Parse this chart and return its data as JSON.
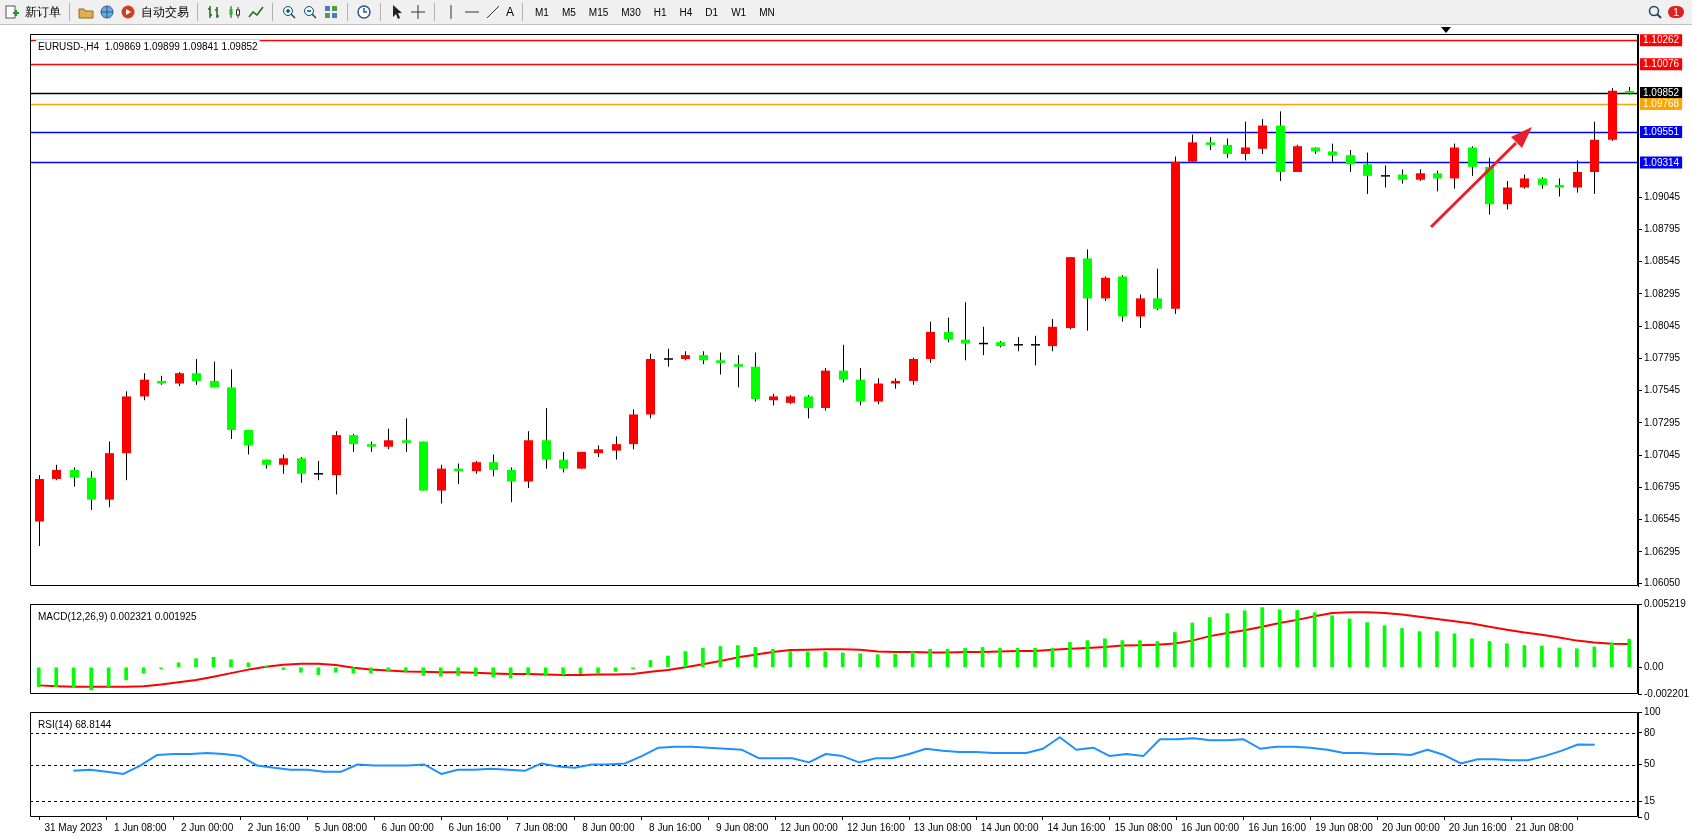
{
  "chart_data": [
    {
      "type": "other",
      "annotations": [
        "新订单",
        "自动交易",
        "A",
        "M1",
        "M5",
        "M15",
        "M30",
        "H1",
        "H4",
        "D1",
        "W1",
        "MN",
        "1"
      ]
    },
    {
      "type": "candlestick",
      "title": "EURUSD-,H4  1.09869 1.09899 1.09841 1.09852",
      "categories": [
        null,
        null,
        null,
        null,
        null,
        null,
        null,
        null,
        null,
        null,
        null,
        null,
        null,
        null,
        null,
        null,
        null,
        null,
        null,
        null,
        null,
        null,
        null,
        null,
        null,
        null,
        null,
        null,
        null,
        null,
        null,
        null,
        null,
        null,
        null,
        null,
        null,
        null,
        null,
        null,
        null,
        null,
        null,
        null,
        null,
        null,
        null,
        null,
        null,
        null,
        null,
        null,
        null,
        null,
        null,
        null,
        null,
        null,
        null,
        null,
        null,
        null,
        null,
        null,
        null,
        null,
        null,
        null,
        null,
        null,
        null,
        null,
        null,
        null,
        null,
        null,
        null,
        null,
        null,
        null,
        null,
        null,
        null,
        null,
        null,
        null,
        null,
        null,
        null,
        null,
        null,
        null
      ],
      "ohlc": [
        [
          1.0653,
          1.0689,
          1.0634,
          1.0686
        ],
        [
          1.0686,
          1.0697,
          1.0685,
          1.0693
        ],
        [
          1.0693,
          1.0695,
          1.068,
          1.0687
        ],
        [
          1.0687,
          1.0692,
          1.0662,
          1.067
        ],
        [
          1.067,
          1.0715,
          1.0664,
          1.0706
        ],
        [
          1.0706,
          1.0754,
          1.0685,
          1.075
        ],
        [
          1.075,
          1.0768,
          1.0747,
          1.0763
        ],
        [
          1.0762,
          1.0766,
          1.0759,
          1.076
        ],
        [
          1.076,
          1.0769,
          1.0758,
          1.0768
        ],
        [
          1.0768,
          1.0779,
          1.0759,
          1.0762
        ],
        [
          1.0762,
          1.0777,
          1.0757,
          1.0757
        ],
        [
          1.0757,
          1.0771,
          1.0717,
          1.0724
        ],
        [
          1.0724,
          1.0724,
          1.0705,
          1.0712
        ],
        [
          1.0701,
          1.0701,
          1.0694,
          1.0697
        ],
        [
          1.0697,
          1.0705,
          1.069,
          1.0702
        ],
        [
          1.0702,
          1.0703,
          1.0683,
          1.069
        ],
        [
          1.069,
          1.07,
          1.0685,
          1.069
        ],
        [
          1.0689,
          1.0723,
          1.0674,
          1.072
        ],
        [
          1.072,
          1.0721,
          1.0707,
          1.0713
        ],
        [
          1.0713,
          1.0715,
          1.0707,
          1.0711
        ],
        [
          1.0711,
          1.0725,
          1.0709,
          1.0716
        ],
        [
          1.0716,
          1.0733,
          1.0707,
          1.0714
        ],
        [
          1.0715,
          1.0715,
          1.0677,
          1.0677
        ],
        [
          1.0677,
          1.0697,
          1.0667,
          1.0694
        ],
        [
          1.0694,
          1.0698,
          1.0682,
          1.0692
        ],
        [
          1.0692,
          1.07,
          1.069,
          1.0699
        ],
        [
          1.0699,
          1.0705,
          1.0688,
          1.0693
        ],
        [
          1.0693,
          1.0695,
          1.0668,
          1.0684
        ],
        [
          1.0684,
          1.0723,
          1.0679,
          1.0716
        ],
        [
          1.0716,
          1.0741,
          1.0694,
          1.0701
        ],
        [
          1.0701,
          1.0707,
          1.0691,
          1.0694
        ],
        [
          1.0694,
          1.0707,
          1.0694,
          1.0707
        ],
        [
          1.0706,
          1.0712,
          1.0703,
          1.0709
        ],
        [
          1.0708,
          1.0719,
          1.0701,
          1.0713
        ],
        [
          1.0713,
          1.074,
          1.0709,
          1.0736
        ],
        [
          1.0736,
          1.0783,
          1.0733,
          1.0779
        ],
        [
          1.0779,
          1.0787,
          1.0773,
          1.0779
        ],
        [
          1.0779,
          1.0785,
          1.0778,
          1.0782
        ],
        [
          1.0782,
          1.0785,
          1.0775,
          1.0778
        ],
        [
          1.0778,
          1.0784,
          1.0767,
          1.0776
        ],
        [
          1.0775,
          1.0782,
          1.0757,
          1.0773
        ],
        [
          1.0773,
          1.0784,
          1.0746,
          1.0748
        ],
        [
          1.0747,
          1.0752,
          1.0743,
          1.075
        ],
        [
          1.0745,
          1.0751,
          1.0744,
          1.075
        ],
        [
          1.075,
          1.0751,
          1.0733,
          1.0741
        ],
        [
          1.0741,
          1.0772,
          1.0739,
          1.077
        ],
        [
          1.077,
          1.079,
          1.0761,
          1.0763
        ],
        [
          1.0763,
          1.0772,
          1.0743,
          1.0746
        ],
        [
          1.0746,
          1.0764,
          1.0744,
          1.076
        ],
        [
          1.076,
          1.0764,
          1.0756,
          1.0762
        ],
        [
          1.0762,
          1.078,
          1.0759,
          1.0779
        ],
        [
          1.0779,
          1.0808,
          1.0776,
          1.08
        ],
        [
          1.08,
          1.0811,
          1.0792,
          1.0794
        ],
        [
          1.0794,
          1.0823,
          1.0778,
          1.0791
        ],
        [
          1.0791,
          1.0804,
          1.0782,
          1.0791
        ],
        [
          1.0792,
          1.0793,
          1.0788,
          1.0789
        ],
        [
          1.079,
          1.0796,
          1.0785,
          1.079
        ],
        [
          1.079,
          1.0797,
          1.0774,
          1.079
        ],
        [
          1.0789,
          1.081,
          1.0785,
          1.0804
        ],
        [
          1.0803,
          1.0858,
          1.0802,
          1.0858
        ],
        [
          1.0857,
          1.0864,
          1.0801,
          1.0826
        ],
        [
          1.0826,
          1.0843,
          1.0824,
          1.0842
        ],
        [
          1.0843,
          1.0844,
          1.0808,
          1.0812
        ],
        [
          1.0812,
          1.0829,
          1.0803,
          1.0826
        ],
        [
          1.0826,
          1.0849,
          1.0817,
          1.0818
        ],
        [
          1.0818,
          1.0936,
          1.0814,
          1.0932
        ],
        [
          1.0932,
          1.0953,
          1.0932,
          1.0947
        ],
        [
          1.0947,
          1.0951,
          1.0941,
          1.0945
        ],
        [
          1.0945,
          1.095,
          1.0935,
          1.0938
        ],
        [
          1.0938,
          1.0963,
          1.0933,
          1.0943
        ],
        [
          1.0942,
          1.0965,
          1.0938,
          1.096
        ],
        [
          1.096,
          1.0971,
          1.0917,
          1.0924
        ],
        [
          1.0924,
          1.0945,
          1.0924,
          1.0944
        ],
        [
          1.0943,
          1.0943,
          1.0938,
          1.094
        ],
        [
          1.094,
          1.0946,
          1.0932,
          1.0937
        ],
        [
          1.0937,
          1.0941,
          1.0924,
          1.093
        ],
        [
          1.093,
          1.0939,
          1.0907,
          1.0921
        ],
        [
          1.0921,
          1.0929,
          1.0912,
          1.0921
        ],
        [
          1.0922,
          1.0926,
          1.0915,
          1.0918
        ],
        [
          1.0918,
          1.0926,
          1.0917,
          1.0923
        ],
        [
          1.0923,
          1.0925,
          1.0909,
          1.0919
        ],
        [
          1.0919,
          1.0946,
          1.0911,
          1.0943
        ],
        [
          1.0943,
          1.0944,
          1.0921,
          1.0928
        ],
        [
          1.0928,
          1.0935,
          1.0891,
          1.0899
        ],
        [
          1.0899,
          1.0917,
          1.0895,
          1.0912
        ],
        [
          1.0912,
          1.0922,
          1.0911,
          1.0919
        ],
        [
          1.0919,
          1.092,
          1.0911,
          1.0914
        ],
        [
          1.0914,
          1.0919,
          1.0905,
          1.0912
        ],
        [
          1.0912,
          1.0933,
          1.0908,
          1.0924
        ],
        [
          1.0924,
          1.0963,
          1.0907,
          1.0949
        ],
        [
          1.0949,
          1.0989,
          1.0948,
          1.0987
        ],
        [
          1.09869,
          1.09899,
          1.09841,
          1.09852
        ]
      ],
      "colors": [
        "#ff0000",
        "#ff0000",
        "#00ff00",
        "#00ff00",
        "#ff0000",
        "#ff0000",
        "#ff0000",
        "#00ff00",
        "#ff0000",
        "#00ff00",
        "#00ff00",
        "#00ff00",
        "#00ff00",
        "#00ff00",
        "#ff0000",
        "#00ff00",
        "#000000",
        "#ff0000",
        "#00ff00",
        "#00ff00",
        "#ff0000",
        "#00ff00",
        "#00ff00",
        "#ff0000",
        "#00ff00",
        "#ff0000",
        "#00ff00",
        "#00ff00",
        "#ff0000",
        "#00ff00",
        "#00ff00",
        "#ff0000",
        "#ff0000",
        "#ff0000",
        "#ff0000",
        "#ff0000",
        "#000000",
        "#ff0000",
        "#00ff00",
        "#00ff00",
        "#00ff00",
        "#00ff00",
        "#ff0000",
        "#ff0000",
        "#00ff00",
        "#ff0000",
        "#00ff00",
        "#00ff00",
        "#ff0000",
        "#ff0000",
        "#ff0000",
        "#ff0000",
        "#00ff00",
        "#00ff00",
        "#000000",
        "#00ff00",
        "#000000",
        "#000000",
        "#ff0000",
        "#ff0000",
        "#00ff00",
        "#ff0000",
        "#00ff00",
        "#ff0000",
        "#00ff00",
        "#ff0000",
        "#ff0000",
        "#00ff00",
        "#00ff00",
        "#ff0000",
        "#ff0000",
        "#00ff00",
        "#ff0000",
        "#00ff00",
        "#00ff00",
        "#00ff00",
        "#00ff00",
        "#000000",
        "#00ff00",
        "#ff0000",
        "#00ff00",
        "#ff0000",
        "#00ff00",
        "#00ff00",
        "#ff0000",
        "#ff0000",
        "#00ff00",
        "#00ff00",
        "#ff0000",
        "#ff0000",
        "#ff0000",
        "#00ff00"
      ],
      "ylim": [
        1.0603,
        1.1031
      ],
      "yticks": [
        {
          "value": 1.0605,
          "label": "1.06050"
        },
        {
          "value": 1.06295,
          "label": "1.06295"
        },
        {
          "value": 1.06545,
          "label": "1.06545"
        },
        {
          "value": 1.06795,
          "label": "1.06795"
        },
        {
          "value": 1.07045,
          "label": "1.07045"
        },
        {
          "value": 1.07295,
          "label": "1.07295"
        },
        {
          "value": 1.07545,
          "label": "1.07545"
        },
        {
          "value": 1.07795,
          "label": "1.07795"
        },
        {
          "value": 1.08045,
          "label": "1.08045"
        },
        {
          "value": 1.08295,
          "label": "1.08295"
        },
        {
          "value": 1.08545,
          "label": "1.08545"
        },
        {
          "value": 1.08795,
          "label": "1.08795"
        },
        {
          "value": 1.09045,
          "label": "1.09045"
        }
      ],
      "ref_lines": [
        {
          "axis": "y",
          "value": 1.10262,
          "label": "1.10262",
          "color": "#ff0000"
        },
        {
          "axis": "y",
          "value": 1.10076,
          "label": "1.10076",
          "color": "#ff0000"
        },
        {
          "axis": "y",
          "value": 1.09852,
          "label": "1.09852",
          "color": "#000000"
        },
        {
          "axis": "y",
          "value": 1.09768,
          "label": "1.09768",
          "color": "#ffa500"
        },
        {
          "axis": "y",
          "value": 1.09551,
          "label": "1.09551",
          "color": "#0000ff"
        },
        {
          "axis": "y",
          "value": 1.09314,
          "label": "1.09314",
          "color": "#0000ff"
        }
      ]
    },
    {
      "type": "bar",
      "title": "MACD(12,26,9) 0.002321 0.001925",
      "categories": [
        null,
        null,
        null,
        null,
        null,
        null,
        null,
        null,
        null,
        null,
        null,
        null,
        null,
        null,
        null,
        null,
        null,
        null,
        null,
        null,
        null,
        null,
        null,
        null,
        null,
        null,
        null,
        null,
        null,
        null,
        null,
        null,
        null,
        null,
        null,
        null,
        null,
        null,
        null,
        null,
        null,
        null,
        null,
        null,
        null,
        null,
        null,
        null,
        null,
        null,
        null,
        null,
        null,
        null,
        null,
        null,
        null,
        null,
        null,
        null,
        null,
        null,
        null,
        null,
        null,
        null,
        null,
        null,
        null,
        null,
        null,
        null,
        null,
        null,
        null,
        null,
        null,
        null,
        null,
        null,
        null,
        null,
        null,
        null,
        null,
        null,
        null,
        null,
        null,
        null,
        null,
        null
      ],
      "series": [
        {
          "type": "bar",
          "color": "#00ff00",
          "values": [
            -0.0016,
            -0.0016,
            -0.00168,
            -0.00186,
            -0.0016,
            -0.00104,
            -0.00048,
            -0.00011,
            0.00037,
            0.00071,
            0.00082,
            0.00063,
            0.00037,
            7e-05,
            -0.00019,
            -0.00041,
            -0.0006,
            -0.00041,
            -0.00048,
            -0.00048,
            -0.00037,
            -0.00034,
            -0.00067,
            -0.00074,
            -0.00067,
            -0.00071,
            -0.00078,
            -0.00089,
            -0.00063,
            -0.00067,
            -0.0006,
            -0.00052,
            -0.00048,
            -0.00034,
            -0.00011,
            0.00056,
            0.00093,
            0.0013,
            0.00156,
            0.00171,
            0.00179,
            0.00164,
            0.00149,
            0.0013,
            0.00127,
            0.00127,
            0.00119,
            0.00112,
            0.00104,
            0.00108,
            0.00127,
            0.00149,
            0.00149,
            0.00156,
            0.00164,
            0.00156,
            0.00156,
            0.00156,
            0.00156,
            0.00205,
            0.0022,
            0.00235,
            0.0022,
            0.0022,
            0.00212,
            0.00287,
            0.00365,
            0.0041,
            0.00443,
            0.00466,
            0.00492,
            0.00473,
            0.00469,
            0.00451,
            0.00425,
            0.00398,
            0.00369,
            0.00343,
            0.0032,
            0.00294,
            0.00294,
            0.00276,
            0.00235,
            0.00212,
            0.00194,
            0.00179,
            0.00175,
            0.0016,
            0.00153,
            0.00168,
            0.00201,
            0.002321
          ]
        },
        {
          "type": "line",
          "color": "#ff0000",
          "values": [
            -0.00149,
            -0.00156,
            -0.0016,
            -0.0016,
            -0.0016,
            -0.0016,
            -0.00156,
            -0.00142,
            -0.00123,
            -0.00104,
            -0.00078,
            -0.00048,
            -0.00019,
            4e-05,
            0.00022,
            0.0003,
            0.0003,
            0.00019,
            -4e-05,
            -0.00019,
            -0.00026,
            -0.00034,
            -0.00037,
            -0.00041,
            -0.00041,
            -0.00045,
            -0.00052,
            -0.00056,
            -0.00056,
            -0.0006,
            -0.00063,
            -0.00063,
            -0.0006,
            -0.0006,
            -0.00056,
            -0.00037,
            -0.00022,
            0,
            0.00026,
            0.00052,
            0.00082,
            0.00104,
            0.00127,
            0.00142,
            0.00145,
            0.00149,
            0.00149,
            0.00145,
            0.0013,
            0.00127,
            0.00127,
            0.00123,
            0.00123,
            0.00127,
            0.00127,
            0.0013,
            0.00134,
            0.00134,
            0.00145,
            0.00153,
            0.0016,
            0.00168,
            0.00179,
            0.00182,
            0.00186,
            0.00197,
            0.0022,
            0.00257,
            0.00283,
            0.00305,
            0.00335,
            0.00365,
            0.00391,
            0.00421,
            0.00447,
            0.00454,
            0.00454,
            0.00447,
            0.00436,
            0.00417,
            0.00398,
            0.0038,
            0.00361,
            0.00335,
            0.00309,
            0.00287,
            0.00268,
            0.00246,
            0.0022,
            0.00205,
            0.00194,
            0.001925
          ]
        }
      ],
      "ylim": [
        -0.002201,
        0.005219
      ],
      "yticks": [
        0.005219,
        {
          "value": 0,
          "label": "0.00"
        },
        -0.002201
      ],
      "marker": "none"
    },
    {
      "type": "line",
      "title": "RSI(14) 68.8144",
      "categories": [
        "31 May 2023",
        null,
        null,
        null,
        "1 Jun 08:00",
        null,
        null,
        null,
        "2 Jun 00:00",
        null,
        null,
        null,
        "2 Jun 16:00",
        null,
        null,
        null,
        "5 Jun 08:00",
        null,
        null,
        null,
        "6 Jun 00:00",
        null,
        null,
        null,
        "6 Jun 16:00",
        null,
        null,
        null,
        "7 Jun 08:00",
        null,
        null,
        null,
        "8 Jun 00:00",
        null,
        null,
        null,
        "8 Jun 16:00",
        null,
        null,
        null,
        "9 Jun 08:00",
        null,
        null,
        null,
        "12 Jun 00:00",
        null,
        null,
        null,
        "12 Jun 16:00",
        null,
        null,
        null,
        "13 Jun 08:00",
        null,
        null,
        null,
        "14 Jun 00:00",
        null,
        null,
        null,
        "14 Jun 16:00",
        null,
        null,
        null,
        "15 Jun 08:00",
        null,
        null,
        null,
        "16 Jun 00:00",
        null,
        null,
        null,
        "16 Jun 16:00",
        null,
        null,
        null,
        "19 Jun 08:00",
        null,
        null,
        null,
        "20 Jun 00:00",
        null,
        null,
        null,
        "20 Jun 16:00",
        null,
        null,
        null,
        "21 Jun 08:00",
        null,
        null,
        null
      ],
      "series": [
        {
          "color": "#1e90ff",
          "values": [
            44,
            45,
            43,
            41,
            49,
            59,
            60,
            60,
            61,
            60,
            58,
            49,
            47,
            45,
            45,
            43,
            43,
            50,
            49,
            49,
            49,
            50,
            41,
            45,
            45,
            46,
            45,
            44,
            51,
            48,
            47,
            50,
            50,
            51,
            58,
            66,
            67,
            67,
            66,
            65,
            64,
            56,
            56,
            56,
            52,
            60,
            58,
            52,
            56,
            56,
            60,
            65,
            63,
            62,
            62,
            61,
            61,
            61,
            65,
            76,
            64,
            66,
            58,
            60,
            58,
            74,
            74,
            75,
            73,
            73,
            74,
            65,
            67,
            67,
            66,
            64,
            61,
            61,
            60,
            60,
            59,
            64,
            59,
            51,
            55,
            55,
            54,
            54,
            58,
            63,
            69,
            68.8144
          ]
        }
      ],
      "ylim": [
        0,
        100
      ],
      "yticks": [
        100,
        80,
        50,
        15,
        0
      ],
      "ref_lines": [
        {
          "axis": "y",
          "value": 80,
          "color": "#000000",
          "line_style": "dashed"
        },
        {
          "axis": "y",
          "value": 50,
          "color": "#000000",
          "line_style": "dashed"
        },
        {
          "axis": "y",
          "value": 15,
          "color": "#000000",
          "line_style": "dashed"
        }
      ],
      "marker": "none"
    }
  ]
}
